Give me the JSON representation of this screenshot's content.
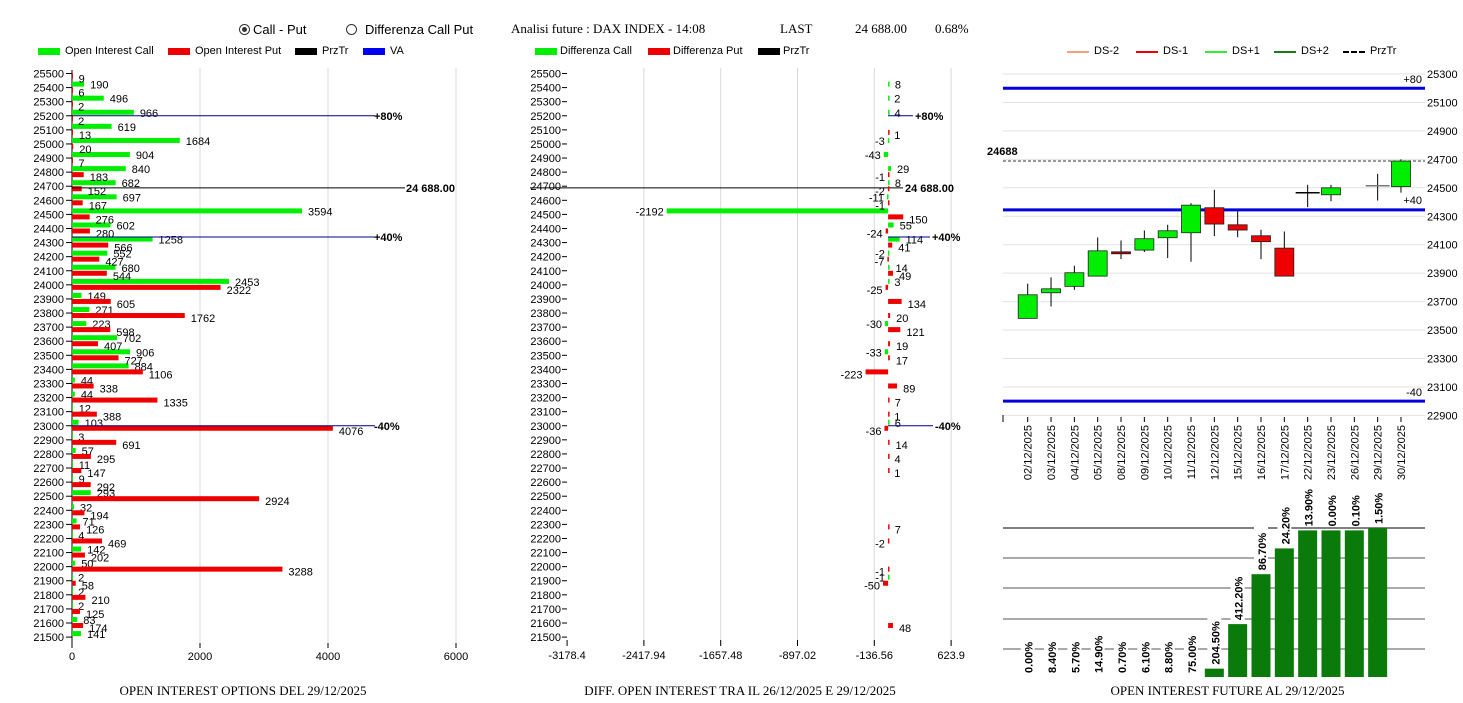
{
  "header": {
    "mode_options": [
      {
        "label": "Call - Put",
        "selected": true
      },
      {
        "label": "Differenza Call Put",
        "selected": false
      }
    ],
    "analysis_title": "Analisi future : DAX INDEX - 14:08",
    "last_label": "LAST",
    "last_value": "24 688.00",
    "change_pct": "0.68%"
  },
  "legends": {
    "left": [
      {
        "label": "Open Interest Call",
        "color": "#00ee00"
      },
      {
        "label": "Open Interest Put",
        "color": "#ee0000"
      },
      {
        "label": "PrzTr",
        "color": "#000000"
      },
      {
        "label": "VA",
        "color": "#0000ee"
      }
    ],
    "middle": [
      {
        "label": "Differenza Call",
        "color": "#00ee00"
      },
      {
        "label": "Differenza Put",
        "color": "#ee0000"
      },
      {
        "label": "PrzTr",
        "color": "#000000"
      }
    ],
    "right": [
      {
        "label": "DS-2",
        "color": "#f4a07a"
      },
      {
        "label": "DS-1",
        "color": "#ee0000"
      },
      {
        "label": "DS+1",
        "color": "#33ee33"
      },
      {
        "label": "DS+2",
        "color": "#1a7a1a"
      },
      {
        "label": "PrzTr",
        "color": "#000000",
        "dashed": true
      }
    ]
  },
  "chart_data": [
    {
      "type": "bar",
      "orientation": "horizontal",
      "title": "OPEN INTEREST OPTIONS DEL 29/12/2025",
      "strikes": [
        25500,
        25400,
        25300,
        25200,
        25100,
        25000,
        24900,
        24800,
        24700,
        24600,
        24500,
        24400,
        24300,
        24200,
        24100,
        24000,
        23900,
        23800,
        23700,
        23600,
        23500,
        23400,
        23300,
        23200,
        23100,
        23000,
        22900,
        22800,
        22700,
        22600,
        22500,
        22400,
        22300,
        22200,
        22100,
        22000,
        21900,
        21800,
        21700,
        21600,
        21500
      ],
      "series": [
        {
          "name": "Open Interest Call",
          "values": [
            null,
            190,
            496,
            966,
            619,
            1684,
            904,
            840,
            682,
            697,
            3594,
            602,
            1258,
            552,
            680,
            2453,
            149,
            271,
            223,
            702,
            906,
            884,
            44,
            44,
            12,
            103,
            3,
            57,
            11,
            9,
            293,
            32,
            71,
            4,
            142,
            50,
            2,
            2,
            2,
            83,
            141
          ]
        },
        {
          "name": "Open Interest Put",
          "values": [
            9,
            6,
            2,
            2,
            13,
            20,
            7,
            183,
            152,
            167,
            276,
            280,
            566,
            427,
            544,
            2322,
            605,
            1762,
            598,
            407,
            727,
            1106,
            338,
            1335,
            388,
            4076,
            691,
            295,
            147,
            292,
            2924,
            194,
            126,
            469,
            202,
            3288,
            58,
            210,
            125,
            174,
            null
          ]
        }
      ],
      "xlim": [
        0,
        6000
      ],
      "xticks": [
        "0",
        "2000",
        "4000",
        "6000"
      ],
      "xtick_values": [
        0,
        2000,
        4000,
        6000
      ],
      "levels": [
        {
          "label": "+80%",
          "strike": 25200
        },
        {
          "label": "+40%",
          "strike": 24340
        },
        {
          "label": "-40%",
          "strike": 23000
        }
      ],
      "last_price": {
        "label": "24 688.00",
        "value": 24688
      }
    },
    {
      "type": "bar",
      "orientation": "horizontal",
      "title": "DIFF. OPEN INTEREST TRA IL 26/12/2025 E 29/12/2025",
      "strikes": [
        25500,
        25400,
        25300,
        25200,
        25100,
        25000,
        24900,
        24800,
        24700,
        24600,
        24500,
        24400,
        24300,
        24200,
        24100,
        24000,
        23900,
        23800,
        23700,
        23600,
        23500,
        23400,
        23300,
        23200,
        23100,
        23000,
        22900,
        22800,
        22700,
        22600,
        22500,
        22400,
        22300,
        22200,
        22100,
        22000,
        21900,
        21800,
        21700,
        21600,
        21500
      ],
      "series": [
        {
          "name": "Differenza Call",
          "values": [
            null,
            8,
            2,
            4,
            null,
            -3,
            -43,
            29,
            8,
            -11,
            -2192,
            55,
            114,
            -2,
            14,
            3,
            null,
            null,
            -30,
            null,
            -33,
            null,
            null,
            null,
            null,
            6,
            null,
            null,
            null,
            null,
            null,
            null,
            null,
            null,
            null,
            null,
            -1,
            null,
            null,
            null,
            null
          ]
        },
        {
          "name": "Differenza Put",
          "values": [
            null,
            null,
            null,
            null,
            1,
            null,
            null,
            -1,
            -2,
            -1,
            150,
            -24,
            41,
            -7,
            49,
            -25,
            134,
            20,
            121,
            19,
            17,
            -223,
            89,
            7,
            1,
            -36,
            14,
            4,
            1,
            null,
            null,
            null,
            7,
            -2,
            null,
            -1,
            -50,
            null,
            null,
            48,
            null
          ]
        }
      ],
      "xlim": [
        -3178.4,
        623.9
      ],
      "xticks": [
        "-3178.4",
        "-2417.94",
        "-1657.48",
        "-897.02",
        "-136.56",
        "623.9"
      ],
      "xtick_values": [
        -3178.4,
        -2417.94,
        -1657.48,
        -897.02,
        -136.56,
        623.9
      ],
      "levels": [
        {
          "label": "+80%",
          "strike": 25200
        },
        {
          "label": "+40%",
          "strike": 24340
        },
        {
          "label": "-40%",
          "strike": 23000
        }
      ],
      "last_price": {
        "label": "24 688.00",
        "value": 24688
      }
    },
    {
      "type": "candlestick",
      "dates": [
        "02/12/2025",
        "03/12/2025",
        "04/12/2025",
        "05/12/2025",
        "08/12/2025",
        "09/12/2025",
        "10/12/2025",
        "11/12/2025",
        "12/12/2025",
        "15/12/2025",
        "16/12/2025",
        "17/12/2025",
        "22/12/2025",
        "23/12/2025",
        "26/12/2025",
        "29/12/2025",
        "30/12/2025"
      ],
      "ohlc": [
        [
          23582,
          23826,
          23582,
          23748
        ],
        [
          23762,
          23870,
          23666,
          23790
        ],
        [
          23807,
          23952,
          23783,
          23903
        ],
        [
          23879,
          24151,
          23879,
          24057
        ],
        [
          24050,
          24130,
          23999,
          24036
        ],
        [
          24062,
          24200,
          24048,
          24142
        ],
        [
          24149,
          24240,
          24006,
          24198
        ],
        [
          24184,
          24392,
          23980,
          24378
        ],
        [
          24360,
          24486,
          24160,
          24245
        ],
        [
          24240,
          24334,
          24153,
          24203
        ],
        [
          24163,
          24205,
          23999,
          24121
        ],
        [
          24076,
          24193,
          23879,
          23879
        ],
        [
          24465,
          24521,
          24364,
          24465
        ],
        [
          24451,
          24521,
          24406,
          24500
        ],
        null,
        [
          24514,
          24598,
          24410,
          24514
        ],
        [
          24508,
          24700,
          24466,
          24688
        ]
      ],
      "ylim": [
        22900,
        25300
      ],
      "yticks": [
        "25300",
        "25100",
        "24900",
        "24700",
        "24500",
        "24300",
        "24100",
        "23900",
        "23700",
        "23500",
        "23300",
        "23100",
        "22900"
      ],
      "ytick_values": [
        25300,
        25100,
        24900,
        24700,
        24500,
        24300,
        24100,
        23900,
        23700,
        23500,
        23300,
        23100,
        22900
      ],
      "levels": [
        {
          "label": "+80",
          "value": 25200
        },
        {
          "label": "+40",
          "value": 24345
        },
        {
          "label": "-40",
          "value": 23000
        }
      ],
      "last_price": {
        "label": "24688",
        "value": 24688
      }
    },
    {
      "type": "bar",
      "title": "OPEN INTEREST FUTURE AL 29/12/2025",
      "dates": [
        "02/12/2025",
        "03/12/2025",
        "04/12/2025",
        "05/12/2025",
        "08/12/2025",
        "09/12/2025",
        "10/12/2025",
        "11/12/2025",
        "12/12/2025",
        "15/12/2025",
        "16/12/2025",
        "17/12/2025",
        "22/12/2025",
        "23/12/2025",
        "26/12/2025",
        "29/12/2025"
      ],
      "labels": [
        "0.00%",
        "8.40%",
        "5.70%",
        "14.90%",
        "0.70%",
        "6.10%",
        "8.80%",
        "75.00%",
        "204.50%",
        "412.20%",
        "86.70%",
        "24.20%",
        "13.90%",
        "0.00%",
        "0.10%",
        "1.50%"
      ],
      "relative_level": [
        0,
        0,
        0,
        0,
        0,
        0,
        0,
        0,
        0.056,
        0.355,
        0.69,
        0.863,
        0.984,
        0.984,
        0.984,
        1.0
      ]
    }
  ]
}
